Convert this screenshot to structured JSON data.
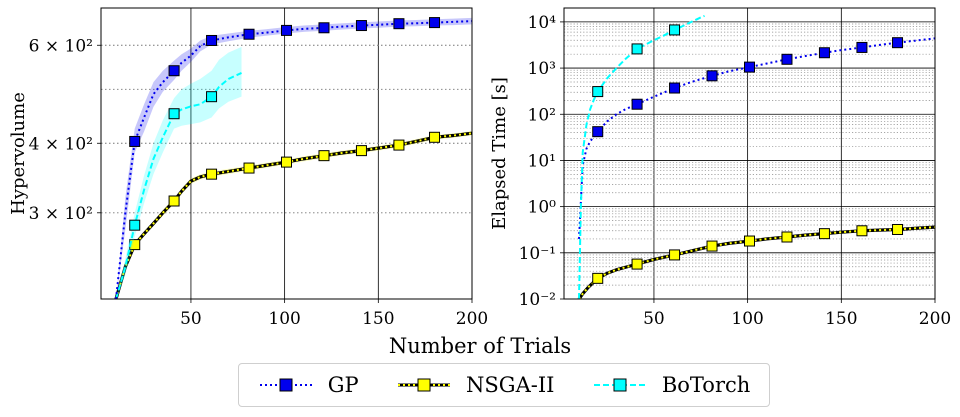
{
  "figure": {
    "shared_xlabel": "Number of Trials",
    "legend": [
      "GP",
      "NSGA-II",
      "BoTorch"
    ]
  },
  "colors": {
    "GP": "#0000ee",
    "NSGA-II": "#ffff00",
    "BoTorch": "#00ffff"
  },
  "chart_data": [
    {
      "type": "line",
      "xlabel": "Number of Trials",
      "ylabel": "Hypervolume",
      "yscale": "log",
      "xlim": [
        2,
        200
      ],
      "ylim": [
        210,
        700
      ],
      "xticks": [
        50,
        100,
        150,
        200
      ],
      "yticks": [
        {
          "value": 300,
          "label": "3 × 10²"
        },
        {
          "value": 400,
          "label": "4 × 10²"
        },
        {
          "value": 600,
          "label": "6 × 10²"
        }
      ],
      "y_minor_gridlines": [
        500
      ],
      "grid": "vertical solid at x ticks, horizontal dotted at y ticks",
      "series": [
        {
          "name": "GP",
          "line": "dotted",
          "marker": "square",
          "x": [
            10,
            15,
            20,
            25,
            30,
            35,
            41,
            45,
            50,
            55,
            61,
            70,
            81,
            90,
            101,
            110,
            121,
            130,
            141,
            150,
            161,
            170,
            180,
            190,
            200
          ],
          "y": [
            210,
            300,
            403,
            445,
            490,
            515,
            540,
            558,
            575,
            598,
            612,
            620,
            628,
            632,
            638,
            642,
            645,
            648,
            651,
            653,
            656,
            657,
            659,
            661,
            663
          ],
          "band_lower": [
            210,
            280,
            385,
            420,
            465,
            495,
            520,
            540,
            560,
            585,
            602,
            610,
            619,
            624,
            630,
            634,
            637,
            640,
            643,
            645,
            648,
            649,
            651,
            652,
            654
          ],
          "band_upper": [
            210,
            320,
            425,
            470,
            515,
            540,
            563,
            578,
            592,
            612,
            624,
            630,
            637,
            641,
            647,
            651,
            654,
            657,
            660,
            662,
            665,
            666,
            668,
            670,
            672
          ],
          "markers": [
            [
              20,
              403
            ],
            [
              41,
              540
            ],
            [
              61,
              612
            ],
            [
              81,
              628
            ],
            [
              101,
              638
            ],
            [
              121,
              645
            ],
            [
              141,
              651
            ],
            [
              161,
              656
            ],
            [
              180,
              659
            ]
          ]
        },
        {
          "name": "NSGA-II",
          "line": "dotted",
          "marker": "square",
          "x": [
            10,
            15,
            20,
            25,
            30,
            35,
            41,
            45,
            50,
            55,
            61,
            70,
            81,
            90,
            101,
            110,
            121,
            130,
            141,
            150,
            161,
            170,
            180,
            190,
            200
          ],
          "y": [
            210,
            240,
            263,
            275,
            287,
            300,
            315,
            328,
            342,
            348,
            352,
            356,
            361,
            365,
            370,
            375,
            380,
            384,
            388,
            392,
            397,
            403,
            410,
            413,
            417
          ],
          "band_lower": [
            210,
            238,
            260,
            272,
            284,
            296,
            311,
            324,
            338,
            344,
            348,
            352,
            357,
            361,
            366,
            371,
            376,
            380,
            384,
            388,
            393,
            399,
            406,
            409,
            413
          ],
          "band_upper": [
            210,
            242,
            266,
            278,
            290,
            304,
            319,
            332,
            346,
            352,
            356,
            360,
            365,
            369,
            374,
            379,
            384,
            388,
            392,
            396,
            401,
            407,
            414,
            417,
            421
          ],
          "markers": [
            [
              20,
              263
            ],
            [
              41,
              315
            ],
            [
              61,
              352
            ],
            [
              81,
              361
            ],
            [
              101,
              370
            ],
            [
              121,
              380
            ],
            [
              141,
              388
            ],
            [
              161,
              397
            ],
            [
              180,
              410
            ]
          ]
        },
        {
          "name": "BoTorch",
          "line": "dashed",
          "marker": "square",
          "x": [
            10,
            15,
            20,
            25,
            30,
            35,
            41,
            45,
            50,
            55,
            61,
            65,
            70,
            77
          ],
          "y": [
            210,
            240,
            285,
            330,
            375,
            410,
            452,
            460,
            466,
            470,
            485,
            505,
            522,
            535
          ],
          "band_lower": [
            210,
            232,
            272,
            312,
            352,
            385,
            425,
            430,
            433,
            436,
            445,
            462,
            475,
            485
          ],
          "band_upper": [
            210,
            248,
            300,
            350,
            400,
            440,
            482,
            500,
            512,
            522,
            540,
            565,
            582,
            596
          ],
          "markers": [
            [
              20,
              285
            ],
            [
              41,
              452
            ],
            [
              61,
              485
            ]
          ]
        }
      ]
    },
    {
      "type": "line",
      "xlabel": "Number of Trials",
      "ylabel": "Elapsed Time [s]",
      "yscale": "log",
      "xlim": [
        2,
        200
      ],
      "ylim": [
        0.01,
        20000
      ],
      "xticks": [
        50,
        100,
        150,
        200
      ],
      "ytick_exponents": [
        -2,
        -1,
        0,
        1,
        2,
        3,
        4
      ],
      "grid": "vertical solid at x ticks, horizontal solid at decades, dotted minor",
      "series": [
        {
          "name": "GP",
          "line": "dotted",
          "marker": "square",
          "x": [
            10,
            12,
            14,
            16,
            18,
            20,
            25,
            30,
            35,
            41,
            50,
            61,
            70,
            81,
            90,
            101,
            110,
            121,
            130,
            141,
            150,
            161,
            170,
            180,
            190,
            200
          ],
          "y": [
            0.2,
            8,
            18,
            26,
            33,
            42,
            70,
            100,
            130,
            165,
            240,
            370,
            500,
            680,
            850,
            1050,
            1250,
            1550,
            1800,
            2150,
            2450,
            2800,
            3150,
            3550,
            3950,
            4400
          ],
          "markers": [
            [
              20,
              42
            ],
            [
              41,
              165
            ],
            [
              61,
              370
            ],
            [
              81,
              680
            ],
            [
              101,
              1050
            ],
            [
              121,
              1550
            ],
            [
              141,
              2150
            ],
            [
              161,
              2800
            ],
            [
              180,
              3550
            ]
          ]
        },
        {
          "name": "NSGA-II",
          "line": "dotted",
          "marker": "square",
          "x": [
            10,
            12,
            15,
            20,
            25,
            30,
            41,
            50,
            61,
            70,
            81,
            90,
            101,
            110,
            121,
            130,
            141,
            150,
            161,
            170,
            180,
            190,
            200
          ],
          "y": [
            0.01,
            0.013,
            0.018,
            0.028,
            0.036,
            0.043,
            0.057,
            0.072,
            0.09,
            0.11,
            0.14,
            0.16,
            0.18,
            0.2,
            0.22,
            0.24,
            0.26,
            0.28,
            0.3,
            0.31,
            0.32,
            0.34,
            0.36
          ],
          "markers": [
            [
              20,
              0.028
            ],
            [
              41,
              0.057
            ],
            [
              61,
              0.09
            ],
            [
              81,
              0.14
            ],
            [
              101,
              0.18
            ],
            [
              121,
              0.22
            ],
            [
              141,
              0.26
            ],
            [
              161,
              0.3
            ],
            [
              180,
              0.32
            ]
          ]
        },
        {
          "name": "BoTorch",
          "line": "dashed",
          "marker": "square",
          "x": [
            10,
            11,
            12,
            14,
            16,
            18,
            20,
            25,
            30,
            35,
            41,
            50,
            55,
            61,
            65,
            70,
            75,
            77
          ],
          "y": [
            0.01,
            1,
            15,
            60,
            130,
            210,
            310,
            600,
            1000,
            1600,
            2600,
            4000,
            5000,
            6700,
            8000,
            10000,
            12500,
            13500
          ],
          "markers": [
            [
              20,
              310
            ],
            [
              41,
              2600
            ],
            [
              61,
              6700
            ]
          ]
        }
      ]
    }
  ]
}
